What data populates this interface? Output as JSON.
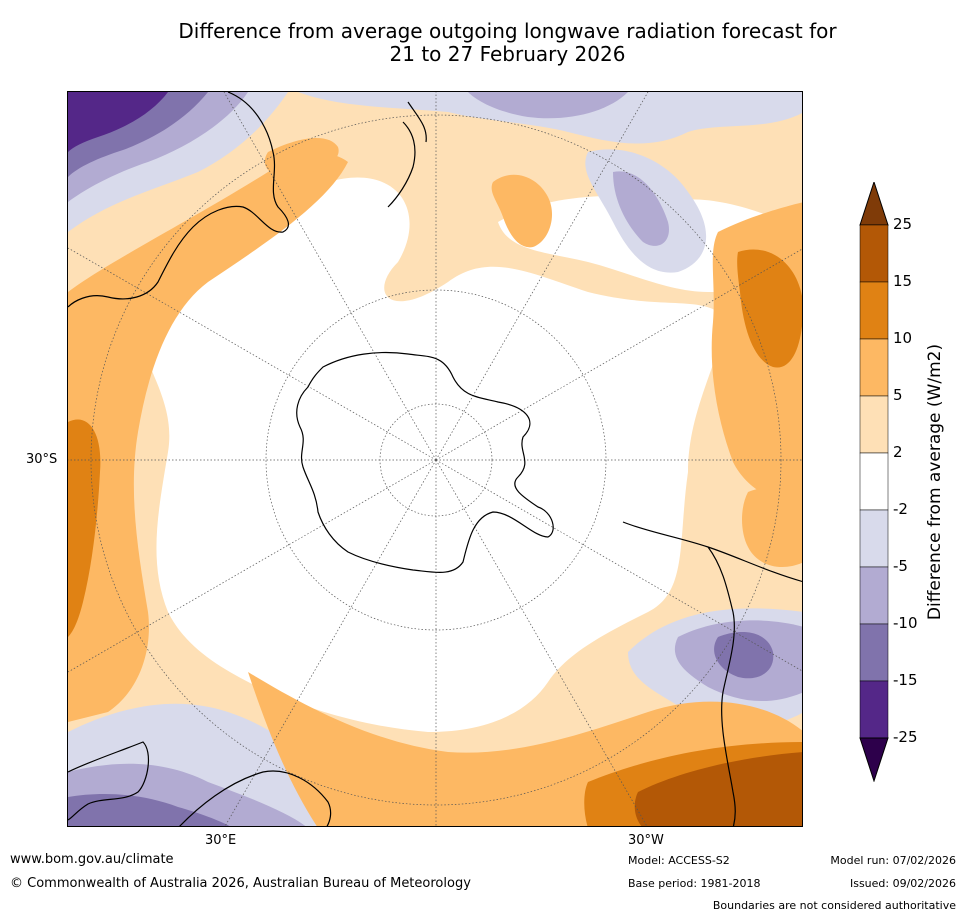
{
  "title": {
    "line1": "Difference from average outgoing longwave radiation forecast for",
    "line2": "21 to 27 February 2026"
  },
  "map": {
    "projection": "south polar stereographic",
    "latitude_label": "30°S",
    "longitude_labels": [
      "30°E",
      "30°W"
    ]
  },
  "colorbar": {
    "label": "Difference from average (W/m2)",
    "tick_labels": [
      "25",
      "15",
      "10",
      "5",
      "2",
      "-2",
      "-5",
      "-10",
      "-15",
      "-25"
    ],
    "colors": [
      "#7f3b08",
      "#b35806",
      "#e08214",
      "#fdb863",
      "#fee0b6",
      "#ffffff",
      "#d8daeb",
      "#b2abd2",
      "#8073ac",
      "#542788",
      "#2d004b"
    ]
  },
  "footer": {
    "website": "www.bom.gov.au/climate",
    "copyright": "© Commonwealth of Australia 2026, Australian Bureau of Meteorology",
    "model": "Model: ACCESS-S2",
    "base_period": "Base period: 1981-2018",
    "model_run": "Model run: 07/02/2026",
    "issued": "Issued: 09/02/2026",
    "disclaimer": "Boundaries are not considered authoritative"
  }
}
